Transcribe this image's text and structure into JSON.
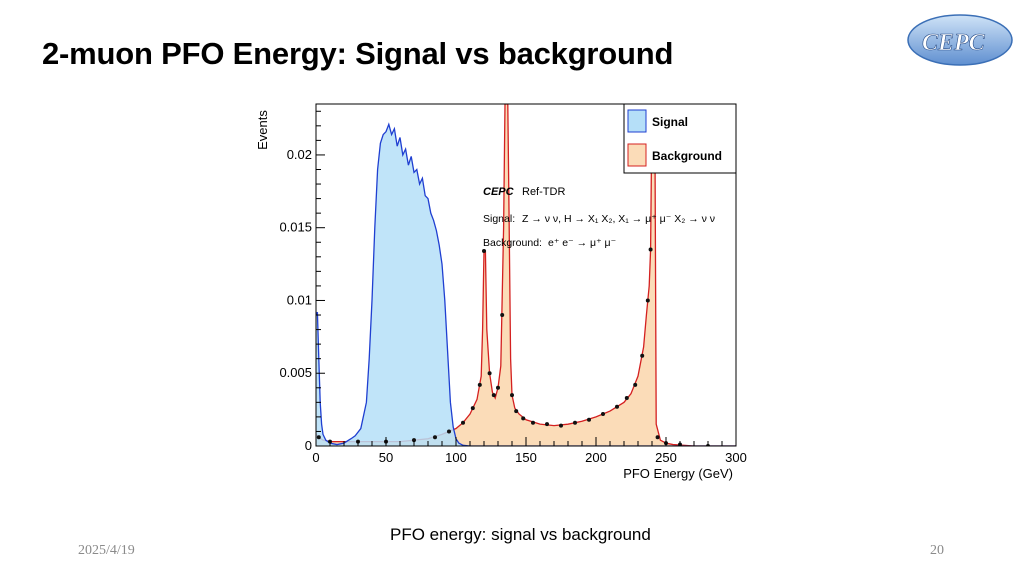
{
  "slide": {
    "title": "2-muon PFO Energy: Signal vs background",
    "caption": "PFO energy: signal vs background",
    "date": "2025/4/19",
    "page_number": "20",
    "logo_text": "CEPC"
  },
  "chart_data": {
    "type": "area",
    "title": "",
    "xlabel": "PFO Energy (GeV)",
    "ylabel": "Events",
    "xlim": [
      0,
      300
    ],
    "ylim": [
      0,
      0.0235
    ],
    "xticks": [
      0,
      50,
      100,
      150,
      200,
      250,
      300
    ],
    "yticks": [
      0,
      0.005,
      0.01,
      0.015,
      0.02
    ],
    "ytick_labels": [
      "0",
      "0.005",
      "0.01",
      "0.015",
      "0.02"
    ],
    "legend_position": "top-right",
    "annotations": {
      "experiment": "CEPC",
      "tag": "Ref-TDR",
      "signal_label": "Signal:",
      "signal_process": "Z → ν ν, H → X₁ X₂, X₁ → μ⁺ μ⁻ X₂ → ν ν",
      "background_label": "Background:",
      "background_process": "e⁺ e⁻ → μ⁺ μ⁻"
    },
    "series": [
      {
        "name": "Signal",
        "fill": "#b5dff8",
        "stroke": "#1f3fd1",
        "points": [
          [
            0,
            0.009
          ],
          [
            1,
            0.0092
          ],
          [
            2,
            0.006
          ],
          [
            3,
            0.003
          ],
          [
            4,
            0.0015
          ],
          [
            5,
            0.0008
          ],
          [
            7,
            0.0004
          ],
          [
            10,
            0.0002
          ],
          [
            15,
            0.0001
          ],
          [
            20,
            0.0002
          ],
          [
            25,
            0.0005
          ],
          [
            28,
            0.0007
          ],
          [
            32,
            0.0012
          ],
          [
            36,
            0.003
          ],
          [
            38,
            0.006
          ],
          [
            40,
            0.01
          ],
          [
            42,
            0.015
          ],
          [
            44,
            0.019
          ],
          [
            46,
            0.0208
          ],
          [
            48,
            0.0214
          ],
          [
            50,
            0.0216
          ],
          [
            52,
            0.0221
          ],
          [
            54,
            0.0214
          ],
          [
            56,
            0.0218
          ],
          [
            58,
            0.0206
          ],
          [
            60,
            0.0212
          ],
          [
            62,
            0.02
          ],
          [
            64,
            0.0204
          ],
          [
            66,
            0.0193
          ],
          [
            68,
            0.0199
          ],
          [
            70,
            0.0188
          ],
          [
            72,
            0.019
          ],
          [
            74,
            0.018
          ],
          [
            76,
            0.0184
          ],
          [
            78,
            0.0172
          ],
          [
            80,
            0.017
          ],
          [
            82,
            0.016
          ],
          [
            84,
            0.0155
          ],
          [
            86,
            0.0148
          ],
          [
            88,
            0.0138
          ],
          [
            90,
            0.0125
          ],
          [
            92,
            0.01
          ],
          [
            94,
            0.0065
          ],
          [
            96,
            0.003
          ],
          [
            98,
            0.0013
          ],
          [
            100,
            0.0005
          ],
          [
            102,
            0.0002
          ],
          [
            105,
            5e-05
          ],
          [
            110,
            0.0
          ],
          [
            300,
            0.0
          ]
        ]
      },
      {
        "name": "Background",
        "fill": "#fbdcb8",
        "stroke": "#d42020",
        "points": [
          [
            0,
            0.0008
          ],
          [
            2,
            0.0006
          ],
          [
            5,
            0.0004
          ],
          [
            10,
            0.0003
          ],
          [
            20,
            0.0003
          ],
          [
            40,
            0.0003
          ],
          [
            60,
            0.0003
          ],
          [
            80,
            0.0005
          ],
          [
            90,
            0.0008
          ],
          [
            100,
            0.0012
          ],
          [
            105,
            0.0016
          ],
          [
            110,
            0.0022
          ],
          [
            115,
            0.0032
          ],
          [
            118,
            0.0048
          ],
          [
            119,
            0.008
          ],
          [
            120,
            0.0134
          ],
          [
            121,
            0.0134
          ],
          [
            122,
            0.008
          ],
          [
            124,
            0.005
          ],
          [
            126,
            0.0037
          ],
          [
            128,
            0.0033
          ],
          [
            130,
            0.004
          ],
          [
            132,
            0.0055
          ],
          [
            134,
            0.015
          ],
          [
            135,
            0.024
          ],
          [
            136,
            0.024
          ],
          [
            137,
            0.024
          ],
          [
            138,
            0.015
          ],
          [
            139,
            0.006
          ],
          [
            140,
            0.0035
          ],
          [
            142,
            0.0026
          ],
          [
            145,
            0.0022
          ],
          [
            150,
            0.0018
          ],
          [
            160,
            0.0015
          ],
          [
            170,
            0.0014
          ],
          [
            180,
            0.0015
          ],
          [
            190,
            0.0017
          ],
          [
            200,
            0.002
          ],
          [
            210,
            0.0024
          ],
          [
            220,
            0.003
          ],
          [
            225,
            0.0036
          ],
          [
            230,
            0.0048
          ],
          [
            234,
            0.0068
          ],
          [
            236,
            0.009
          ],
          [
            238,
            0.011
          ],
          [
            239,
            0.0135
          ],
          [
            240,
            0.024
          ],
          [
            241,
            0.024
          ],
          [
            242,
            0.024
          ],
          [
            243,
            0.0015
          ],
          [
            246,
            0.0004
          ],
          [
            250,
            0.0002
          ],
          [
            255,
            0.0001
          ],
          [
            270,
            0.0
          ],
          [
            300,
            0.0
          ]
        ]
      }
    ],
    "background_markers": [
      [
        2,
        0.0006
      ],
      [
        10,
        0.0003
      ],
      [
        30,
        0.0003
      ],
      [
        50,
        0.0003
      ],
      [
        70,
        0.0004
      ],
      [
        85,
        0.0006
      ],
      [
        95,
        0.001
      ],
      [
        105,
        0.0016
      ],
      [
        112,
        0.0026
      ],
      [
        117,
        0.0042
      ],
      [
        120,
        0.0134
      ],
      [
        124,
        0.005
      ],
      [
        127,
        0.0035
      ],
      [
        130,
        0.004
      ],
      [
        133,
        0.009
      ],
      [
        140,
        0.0035
      ],
      [
        143,
        0.0024
      ],
      [
        148,
        0.0019
      ],
      [
        155,
        0.0016
      ],
      [
        165,
        0.0015
      ],
      [
        175,
        0.0014
      ],
      [
        185,
        0.0016
      ],
      [
        195,
        0.0018
      ],
      [
        205,
        0.0022
      ],
      [
        215,
        0.0027
      ],
      [
        222,
        0.0033
      ],
      [
        228,
        0.0042
      ],
      [
        233,
        0.0062
      ],
      [
        237,
        0.01
      ],
      [
        239,
        0.0135
      ],
      [
        244,
        0.0006
      ],
      [
        250,
        0.0002
      ],
      [
        260,
        0.0001
      ],
      [
        280,
        0.0
      ]
    ]
  }
}
